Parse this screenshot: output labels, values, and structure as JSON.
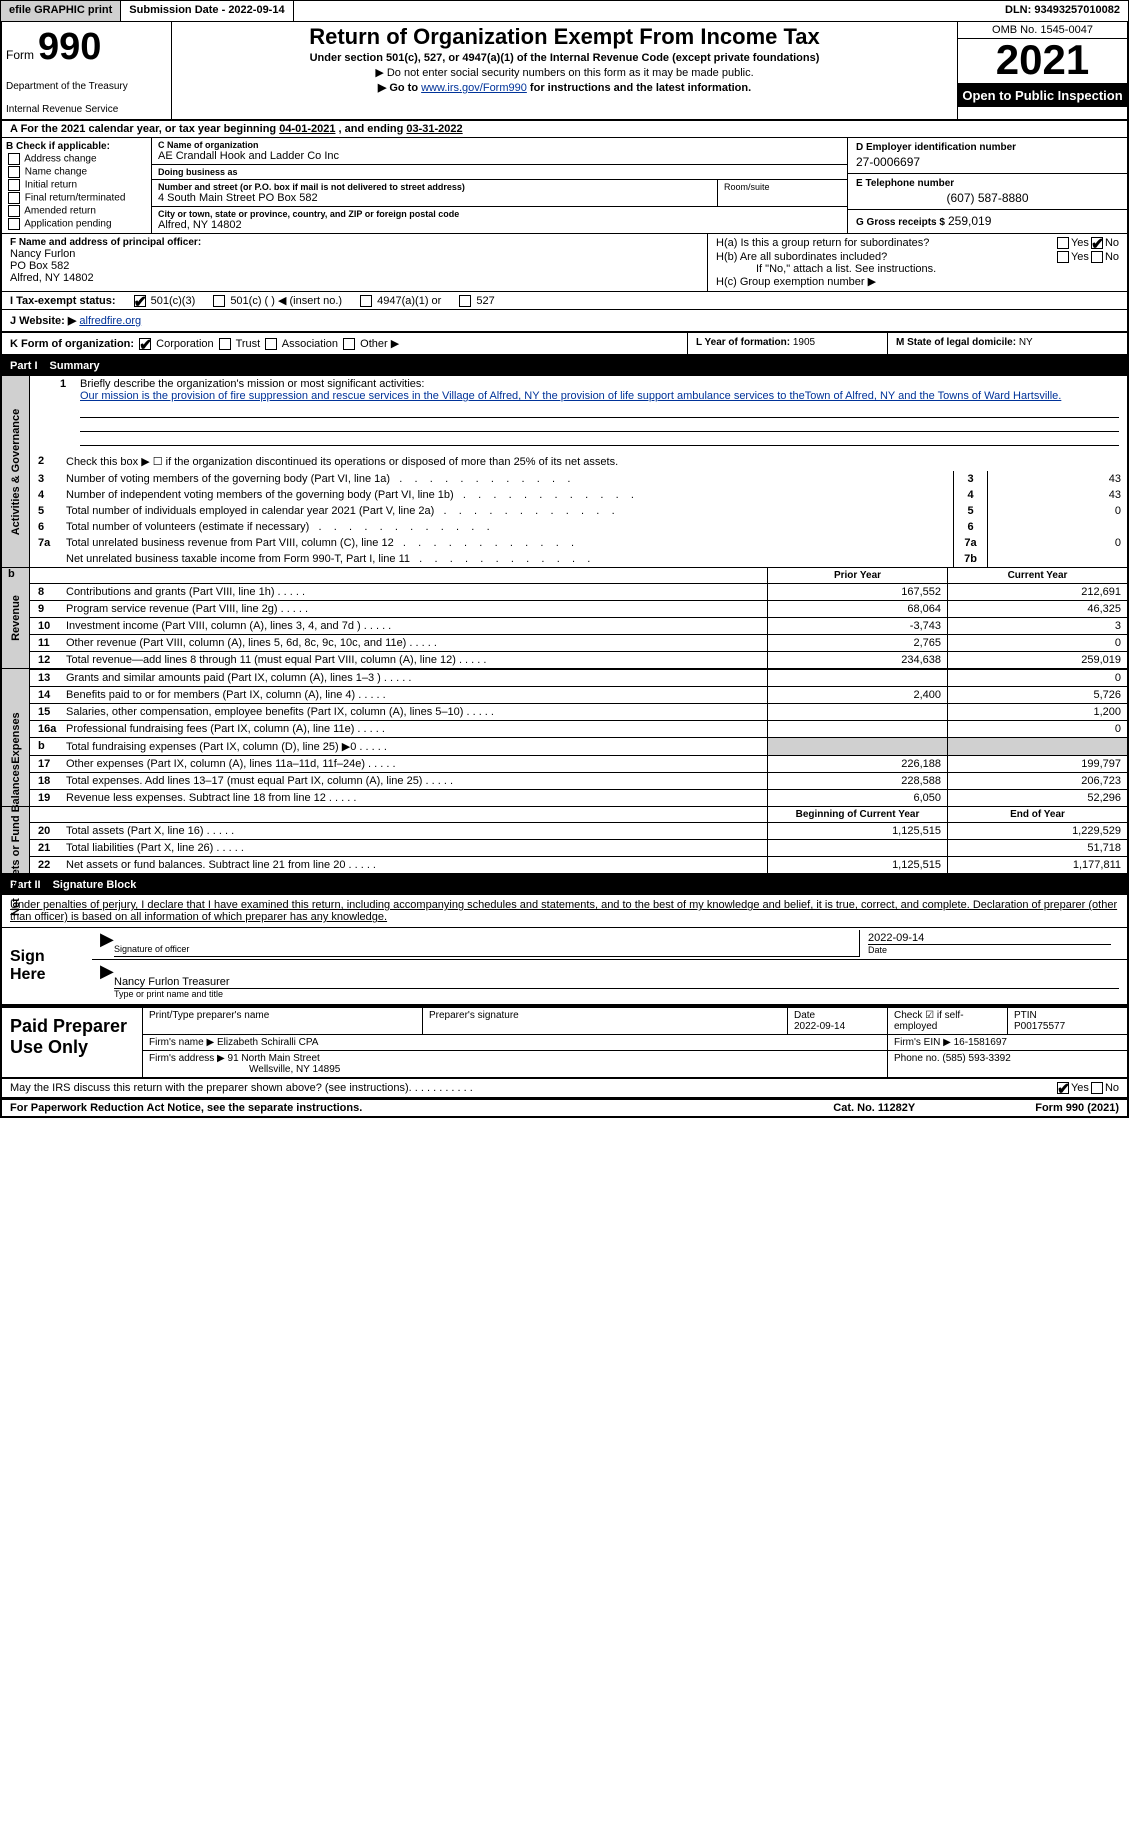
{
  "topbar": {
    "efile_btn": "efile GRAPHIC print",
    "submission": "Submission Date - 2022-09-14",
    "dln": "DLN: 93493257010082"
  },
  "header": {
    "form_word": "Form",
    "form_num": "990",
    "title": "Return of Organization Exempt From Income Tax",
    "sub1": "Under section 501(c), 527, or 4947(a)(1) of the Internal Revenue Code (except private foundations)",
    "sub2a": "▶ Do not enter social security numbers on this form as it may be made public.",
    "sub2b_pre": "▶ Go to ",
    "sub2b_link": "www.irs.gov/Form990",
    "sub2b_post": " for instructions and the latest information.",
    "dept1": "Department of the Treasury",
    "dept2": "Internal Revenue Service",
    "omb": "OMB No. 1545-0047",
    "year": "2021",
    "open_public": "Open to Public Inspection"
  },
  "taxyear": {
    "label_a": "A For the 2021 calendar year, or tax year beginning ",
    "begin": "04-01-2021",
    "mid": " , and ending ",
    "end": "03-31-2022"
  },
  "boxB": {
    "title": "B Check if applicable:",
    "items": [
      "Address change",
      "Name change",
      "Initial return",
      "Final return/terminated",
      "Amended return",
      "Application pending"
    ]
  },
  "boxC": {
    "name_lbl": "C Name of organization",
    "name": "AE Crandall Hook and Ladder Co Inc",
    "dba_lbl": "Doing business as",
    "dba": "",
    "street_lbl": "Number and street (or P.O. box if mail is not delivered to street address)",
    "street": "4 South Main Street PO Box 582",
    "room_lbl": "Room/suite",
    "room": "",
    "city_lbl": "City or town, state or province, country, and ZIP or foreign postal code",
    "city": "Alfred, NY  14802"
  },
  "boxD": {
    "lbl": "D Employer identification number",
    "val": "27-0006697"
  },
  "boxE": {
    "lbl": "E Telephone number",
    "val": "(607) 587-8880"
  },
  "boxG": {
    "lbl": "G Gross receipts $",
    "val": "259,019"
  },
  "boxF": {
    "lbl": "F  Name and address of principal officer:",
    "name": "Nancy Furlon",
    "addr1": "PO Box 582",
    "addr2": "Alfred, NY  14802"
  },
  "boxH": {
    "ha": "H(a)  Is this a group return for subordinates?",
    "hb": "H(b)  Are all subordinates included?",
    "hb_note": "If \"No,\" attach a list. See instructions.",
    "hc": "H(c)  Group exemption number ▶",
    "yes": "Yes",
    "no": "No"
  },
  "boxI": {
    "lbl": "I   Tax-exempt status:",
    "opt1": "501(c)(3)",
    "opt2": "501(c) (   ) ◀ (insert no.)",
    "opt3": "4947(a)(1) or",
    "opt4": "527"
  },
  "boxJ": {
    "lbl": "J  Website: ▶",
    "val": "alfredfire.org"
  },
  "boxK": {
    "lbl": "K Form of organization:",
    "opts": [
      "Corporation",
      "Trust",
      "Association",
      "Other ▶"
    ]
  },
  "boxL": {
    "lbl": "L Year of formation:",
    "val": "1905"
  },
  "boxM": {
    "lbl": "M State of legal domicile:",
    "val": "NY"
  },
  "part1": {
    "num": "Part I",
    "title": "Summary"
  },
  "summary": {
    "side_act": "Activities & Governance",
    "side_rev": "Revenue",
    "side_exp": "Expenses",
    "side_net": "Net Assets or Fund Balances",
    "l1_lbl": "Briefly describe the organization's mission or most significant activities:",
    "l1_text": "Our mission is the provision of fire suppression and rescue services in the Village of Alfred, NY the provision of life support ambulance services to theTown of Alfred, NY and the Towns of Ward Hartsville.",
    "l2": "Check this box ▶ ☐ if the organization discontinued its operations or disposed of more than 25% of its net assets.",
    "rows_gov": [
      {
        "n": "3",
        "t": "Number of voting members of the governing body (Part VI, line 1a)",
        "c": "3",
        "v": "43"
      },
      {
        "n": "4",
        "t": "Number of independent voting members of the governing body (Part VI, line 1b)",
        "c": "4",
        "v": "43"
      },
      {
        "n": "5",
        "t": "Total number of individuals employed in calendar year 2021 (Part V, line 2a)",
        "c": "5",
        "v": "0"
      },
      {
        "n": "6",
        "t": "Total number of volunteers (estimate if necessary)",
        "c": "6",
        "v": ""
      },
      {
        "n": "7a",
        "t": "Total unrelated business revenue from Part VIII, column (C), line 12",
        "c": "7a",
        "v": "0"
      },
      {
        "n": "",
        "t": "Net unrelated business taxable income from Form 990-T, Part I, line 11",
        "c": "7b",
        "v": ""
      }
    ],
    "col_prior": "Prior Year",
    "col_curr": "Current Year",
    "rows_rev": [
      {
        "n": "8",
        "t": "Contributions and grants (Part VIII, line 1h)",
        "p": "167,552",
        "c": "212,691"
      },
      {
        "n": "9",
        "t": "Program service revenue (Part VIII, line 2g)",
        "p": "68,064",
        "c": "46,325"
      },
      {
        "n": "10",
        "t": "Investment income (Part VIII, column (A), lines 3, 4, and 7d )",
        "p": "-3,743",
        "c": "3"
      },
      {
        "n": "11",
        "t": "Other revenue (Part VIII, column (A), lines 5, 6d, 8c, 9c, 10c, and 11e)",
        "p": "2,765",
        "c": "0"
      },
      {
        "n": "12",
        "t": "Total revenue—add lines 8 through 11 (must equal Part VIII, column (A), line 12)",
        "p": "234,638",
        "c": "259,019"
      }
    ],
    "rows_exp": [
      {
        "n": "13",
        "t": "Grants and similar amounts paid (Part IX, column (A), lines 1–3 )",
        "p": "",
        "c": "0"
      },
      {
        "n": "14",
        "t": "Benefits paid to or for members (Part IX, column (A), line 4)",
        "p": "2,400",
        "c": "5,726"
      },
      {
        "n": "15",
        "t": "Salaries, other compensation, employee benefits (Part IX, column (A), lines 5–10)",
        "p": "",
        "c": "1,200"
      },
      {
        "n": "16a",
        "t": "Professional fundraising fees (Part IX, column (A), line 11e)",
        "p": "",
        "c": "0"
      },
      {
        "n": "b",
        "t": "Total fundraising expenses (Part IX, column (D), line 25) ▶0",
        "p": "SHADE",
        "c": "SHADE"
      },
      {
        "n": "17",
        "t": "Other expenses (Part IX, column (A), lines 11a–11d, 11f–24e)",
        "p": "226,188",
        "c": "199,797"
      },
      {
        "n": "18",
        "t": "Total expenses. Add lines 13–17 (must equal Part IX, column (A), line 25)",
        "p": "228,588",
        "c": "206,723"
      },
      {
        "n": "19",
        "t": "Revenue less expenses. Subtract line 18 from line 12",
        "p": "6,050",
        "c": "52,296"
      }
    ],
    "col_begin": "Beginning of Current Year",
    "col_end": "End of Year",
    "rows_net": [
      {
        "n": "20",
        "t": "Total assets (Part X, line 16)",
        "p": "1,125,515",
        "c": "1,229,529"
      },
      {
        "n": "21",
        "t": "Total liabilities (Part X, line 26)",
        "p": "",
        "c": "51,718"
      },
      {
        "n": "22",
        "t": "Net assets or fund balances. Subtract line 21 from line 20",
        "p": "1,125,515",
        "c": "1,177,811"
      }
    ]
  },
  "part2": {
    "num": "Part II",
    "title": "Signature Block"
  },
  "sig": {
    "intro": "Under penalties of perjury, I declare that I have examined this return, including accompanying schedules and statements, and to the best of my knowledge and belief, it is true, correct, and complete. Declaration of preparer (other than officer) is based on all information of which preparer has any knowledge.",
    "sign_here": "Sign Here",
    "sig_officer": "Signature of officer",
    "sig_date": "2022-09-14",
    "date_lbl": "Date",
    "name_title": "Nancy Furlon  Treasurer",
    "name_title_lbl": "Type or print name and title"
  },
  "prep": {
    "title": "Paid Preparer Use Only",
    "r1_name_lbl": "Print/Type preparer's name",
    "r1_name": "",
    "r1_sig_lbl": "Preparer's signature",
    "r1_date_lbl": "Date",
    "r1_date": "2022-09-14",
    "r1_check_lbl": "Check ☑ if self-employed",
    "r1_ptin_lbl": "PTIN",
    "r1_ptin": "P00175577",
    "r2_firm_lbl": "Firm's name    ▶",
    "r2_firm": "Elizabeth Schiralli CPA",
    "r2_ein_lbl": "Firm's EIN ▶",
    "r2_ein": "16-1581697",
    "r3_addr_lbl": "Firm's address ▶",
    "r3_addr1": "91 North Main Street",
    "r3_addr2": "Wellsville, NY  14895",
    "r3_phone_lbl": "Phone no.",
    "r3_phone": "(585) 593-3392"
  },
  "discuss": {
    "text": "May the IRS discuss this return with the preparer shown above? (see instructions)",
    "yes": "Yes",
    "no": "No"
  },
  "footer": {
    "left": "For Paperwork Reduction Act Notice, see the separate instructions.",
    "mid": "Cat. No. 11282Y",
    "right": "Form 990 (2021)"
  }
}
